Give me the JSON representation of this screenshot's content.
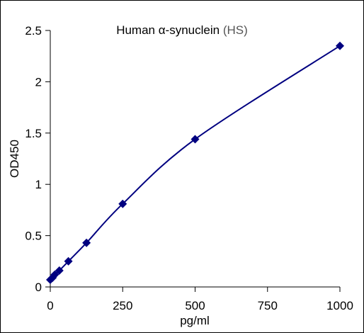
{
  "chart_data": {
    "type": "scatter",
    "title": "Human α-synuclein",
    "title_suffix": "(HS)",
    "xlabel": "pg/ml",
    "ylabel": "OD450",
    "xlim": [
      0,
      1000
    ],
    "ylim": [
      0,
      2.5
    ],
    "xticks": [
      0,
      250,
      500,
      750,
      1000
    ],
    "yticks": [
      0,
      0.5,
      1,
      1.5,
      2,
      2.5
    ],
    "xtick_labels": [
      "0",
      "250",
      "500",
      "750",
      "1000"
    ],
    "ytick_labels": [
      "0",
      "0.5",
      "1",
      "1.5",
      "2",
      "2.5"
    ],
    "grid": false,
    "legend": "none",
    "series": [
      {
        "marker": "diamond",
        "fitted_curve": true,
        "color": "#000080",
        "points": [
          {
            "x": 0,
            "y": 0.07
          },
          {
            "x": 7.8,
            "y": 0.09
          },
          {
            "x": 15.6,
            "y": 0.12
          },
          {
            "x": 31.25,
            "y": 0.16
          },
          {
            "x": 62.5,
            "y": 0.25
          },
          {
            "x": 125,
            "y": 0.43
          },
          {
            "x": 250,
            "y": 0.81
          },
          {
            "x": 500,
            "y": 1.44
          },
          {
            "x": 1000,
            "y": 2.35
          }
        ]
      }
    ]
  }
}
